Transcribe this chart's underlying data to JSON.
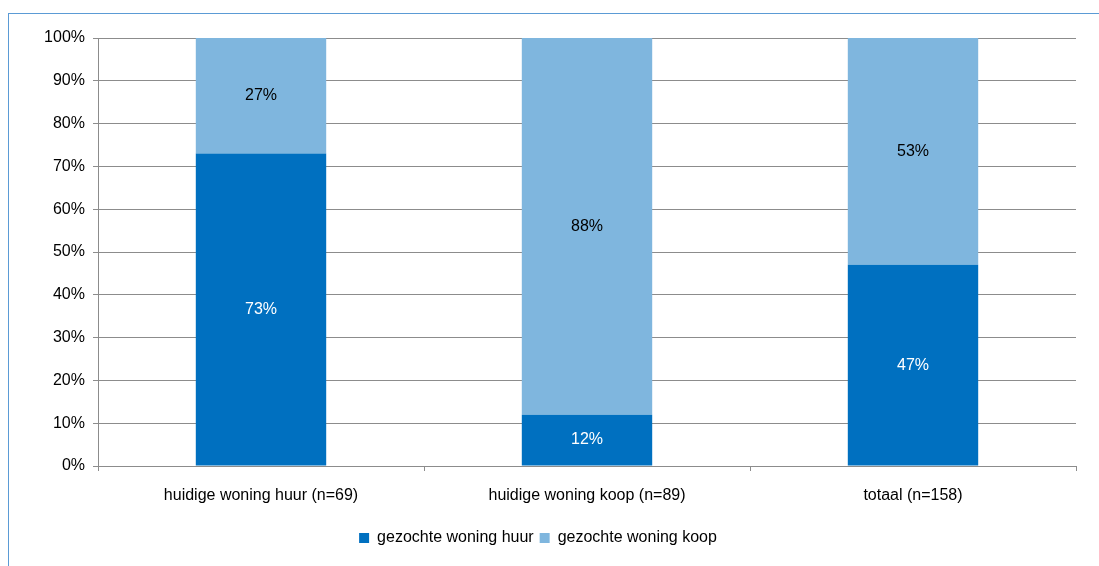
{
  "chart_data": {
    "type": "bar",
    "stacked": true,
    "categories": [
      "huidige woning huur (n=69)",
      "huidige woning koop (n=89)",
      "totaal (n=158)"
    ],
    "series": [
      {
        "name": "gezochte woning huur",
        "color": "#0070c0",
        "values": [
          73,
          12,
          47
        ],
        "value_labels": [
          "73%",
          "12%",
          "47%"
        ]
      },
      {
        "name": "gezochte woning koop",
        "color": "#7fb6de",
        "values": [
          27,
          88,
          53
        ],
        "value_labels": [
          "27%",
          "88%",
          "53%"
        ]
      }
    ],
    "ylim": [
      0,
      100
    ],
    "yticks": [
      {
        "value": 0,
        "label": "0%"
      },
      {
        "value": 10,
        "label": "10%"
      },
      {
        "value": 20,
        "label": "20%"
      },
      {
        "value": 30,
        "label": "30%"
      },
      {
        "value": 40,
        "label": "40%"
      },
      {
        "value": 50,
        "label": "50%"
      },
      {
        "value": 60,
        "label": "60%"
      },
      {
        "value": 70,
        "label": "70%"
      },
      {
        "value": 80,
        "label": "80%"
      },
      {
        "value": 90,
        "label": "90%"
      },
      {
        "value": 100,
        "label": "100%"
      }
    ],
    "grid": "y",
    "legend": "bottom"
  }
}
